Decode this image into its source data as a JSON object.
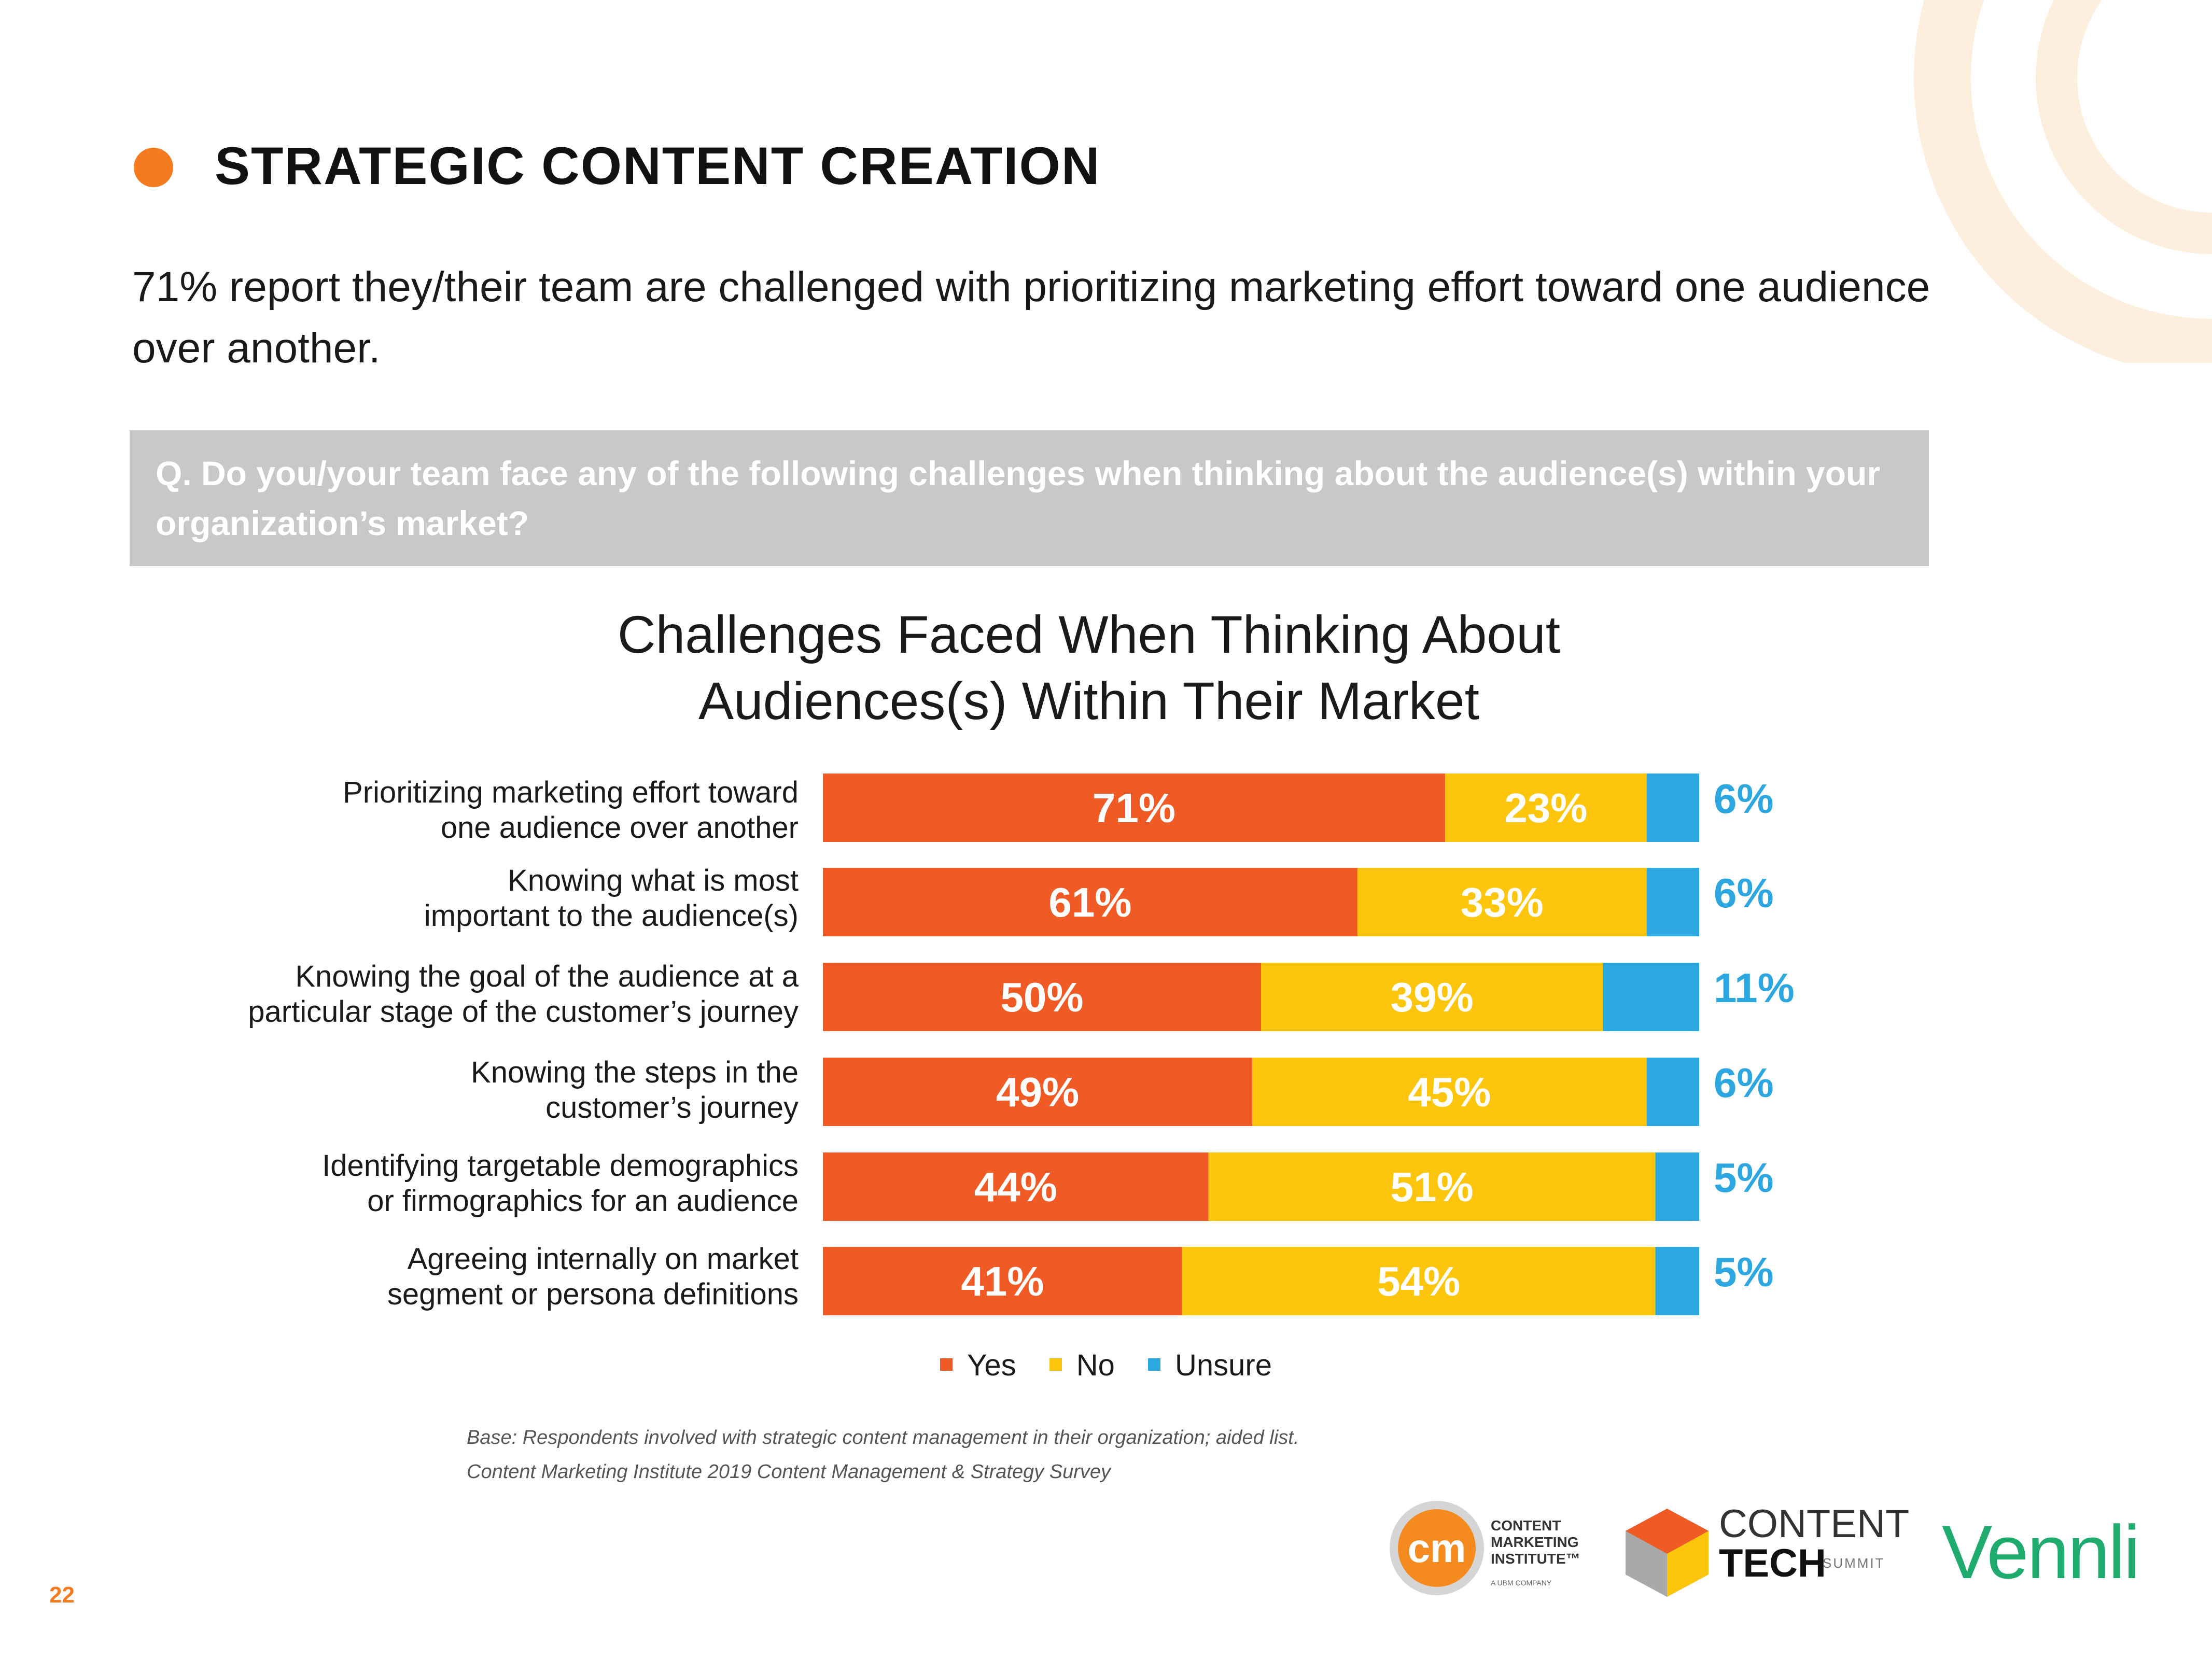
{
  "header": {
    "title": "STRATEGIC CONTENT CREATION",
    "dot_color": "#f47b20",
    "dot_icon": "orange-circle-bullet"
  },
  "intro": "71% report they/their team are challenged with prioritizing marketing effort toward one audience over another.",
  "question": "Q. Do you/your team face any of the following challenges when thinking about the audience(s) within your organization’s market?",
  "chart_data": {
    "type": "bar",
    "orientation": "horizontal",
    "stacked": true,
    "title": "Challenges Faced When Thinking About Audiences(s) Within Their Market",
    "categories": [
      "Prioritizing marketing effort toward one audience over another",
      "Knowing what is most important to the audience(s)",
      "Knowing the goal of the audience at a particular stage of the customer’s journey",
      "Knowing the steps in the customer’s journey",
      "Identifying targetable demographics or firmographics for an audience",
      "Agreeing internally on market segment or persona definitions"
    ],
    "series": [
      {
        "name": "Yes",
        "color": "#f05a24",
        "values": [
          71,
          61,
          50,
          49,
          44,
          41
        ]
      },
      {
        "name": "No",
        "color": "#fdc50c",
        "values": [
          23,
          33,
          39,
          45,
          51,
          54
        ]
      },
      {
        "name": "Unsure",
        "color": "#2ca7df",
        "values": [
          6,
          6,
          11,
          6,
          5,
          5
        ]
      }
    ],
    "data_labels": [
      [
        "71%",
        "23%",
        "6%"
      ],
      [
        "61%",
        "33%",
        "6%"
      ],
      [
        "50%",
        "39%",
        "11%"
      ],
      [
        "49%",
        "45%",
        "6%"
      ],
      [
        "44%",
        "51%",
        "5%"
      ],
      [
        "41%",
        "54%",
        "5%"
      ]
    ],
    "xlim": [
      0,
      100
    ],
    "legend_position": "bottom-center",
    "grid": false
  },
  "row_labels": [
    [
      "Prioritizing marketing effort toward",
      "one audience over another"
    ],
    [
      "Knowing what is most",
      "important to the audience(s)"
    ],
    [
      "Knowing the goal of the audience at a",
      "particular stage of the customer’s journey"
    ],
    [
      "Knowing the steps in the",
      "customer’s journey"
    ],
    [
      "Identifying targetable demographics",
      "or firmographics for an audience"
    ],
    [
      "Agreeing internally on market",
      "segment or persona definitions"
    ]
  ],
  "legend": [
    "Yes",
    "No",
    "Unsure"
  ],
  "footnotes": {
    "base": "Base: Respondents involved with strategic content management in their organization; aided list.",
    "source": "Content Marketing Institute 2019 Content Management & Strategy Survey"
  },
  "page_number": "22",
  "logos": {
    "cmi": {
      "badge": "cm",
      "lines": [
        "CONTENT",
        "MARKETING",
        "INSTITUTE™"
      ],
      "sub": "A UBM COMPANY"
    },
    "content_tech": {
      "line1": "CONTENT",
      "line2": "TECH",
      "line3": "SUMMIT"
    },
    "vennli": "Vennli"
  },
  "colors": {
    "accent": "#f47b20",
    "question_bg": "#c8c8c8",
    "deco_arc": "#fde9d4"
  }
}
